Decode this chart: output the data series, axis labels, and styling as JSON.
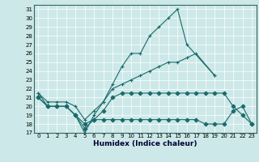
{
  "xlabel": "Humidex (Indice chaleur)",
  "bg_color": "#cde8e8",
  "grid_color": "#b0d8d8",
  "line_color": "#1a6b6b",
  "xlim": [
    -0.5,
    23.5
  ],
  "ylim": [
    17,
    31.5
  ],
  "yticks": [
    17,
    18,
    19,
    20,
    21,
    22,
    23,
    24,
    25,
    26,
    27,
    28,
    29,
    30,
    31
  ],
  "xticks": [
    0,
    1,
    2,
    3,
    4,
    5,
    6,
    7,
    8,
    9,
    10,
    11,
    12,
    13,
    14,
    15,
    16,
    17,
    18,
    19,
    20,
    21,
    22,
    23
  ],
  "lines": [
    {
      "x": [
        0,
        1,
        2,
        3,
        4,
        5,
        6,
        7,
        8,
        9,
        10,
        11,
        12,
        13,
        14,
        15,
        16,
        19
      ],
      "y": [
        21.5,
        20,
        20,
        20,
        19,
        17,
        19,
        20.5,
        22.5,
        24.5,
        26,
        26,
        28,
        29,
        30,
        31,
        27,
        23.5
      ],
      "marker": "+"
    },
    {
      "x": [
        0,
        1,
        2,
        3,
        4,
        5,
        6,
        7,
        8,
        9,
        10,
        11,
        12,
        13,
        14,
        15,
        16,
        17,
        18,
        19,
        20,
        21,
        22,
        23
      ],
      "y": [
        21,
        20,
        20,
        20,
        19,
        17.5,
        18.5,
        19.5,
        21,
        21.5,
        21.5,
        21.5,
        21.5,
        21.5,
        21.5,
        21.5,
        21.5,
        21.5,
        21.5,
        21.5,
        21.5,
        20,
        19,
        18
      ],
      "marker": "D"
    },
    {
      "x": [
        0,
        1,
        2,
        3,
        4,
        5,
        6,
        7,
        8,
        9,
        10,
        11,
        12,
        13,
        14,
        15,
        16,
        17,
        19
      ],
      "y": [
        21.5,
        20.5,
        20.5,
        20.5,
        20,
        18.5,
        19.5,
        20.5,
        22,
        22.5,
        23,
        23.5,
        24,
        24.5,
        25,
        25,
        25.5,
        26,
        23.5
      ],
      "marker": "+"
    },
    {
      "x": [
        0,
        1,
        2,
        3,
        4,
        5,
        6,
        7,
        8,
        9,
        10,
        11,
        12,
        13,
        14,
        15,
        16,
        17,
        18,
        19,
        20,
        21,
        22,
        23
      ],
      "y": [
        21,
        20,
        20,
        20,
        19,
        18,
        18.5,
        18.5,
        18.5,
        18.5,
        18.5,
        18.5,
        18.5,
        18.5,
        18.5,
        18.5,
        18.5,
        18.5,
        18,
        18,
        18,
        19.5,
        20,
        18
      ],
      "marker": "D"
    }
  ]
}
